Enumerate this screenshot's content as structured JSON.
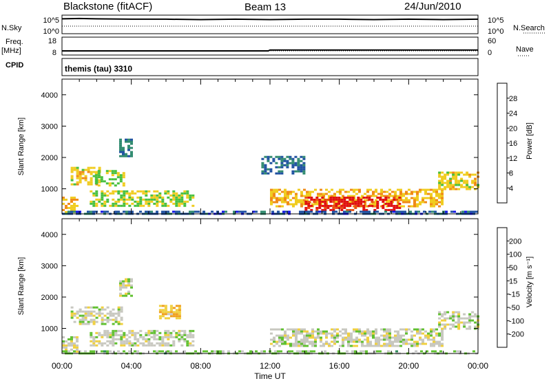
{
  "header": {
    "station": "Blackstone (fitACF)",
    "beam": "Beam 13",
    "date": "24/Jun/2010"
  },
  "side_labels": {
    "nsky": "N.Sky",
    "freq_line1": "Freq.",
    "freq_line2": "[MHz]",
    "cpid": "CPID",
    "nsearch": "N.Search",
    "nave": "Nave",
    "nsky_ticks": [
      "10^5",
      "10^0"
    ],
    "nsearch_ticks": [
      "10^5",
      "10^0"
    ],
    "freq_ticks": [
      "18",
      "8"
    ],
    "nave_ticks": [
      "60",
      "0"
    ]
  },
  "cpid_text": "themis (tau) 3310",
  "x_axis": {
    "label": "Time UT",
    "ticks": [
      "00:00",
      "04:00",
      "08:00",
      "12:00",
      "16:00",
      "20:00",
      "00:00"
    ]
  },
  "colors": {
    "power_scale": [
      "#1414e6",
      "#1e50a0",
      "#2f8a6e",
      "#48c040",
      "#f0cc20",
      "#f08a18",
      "#e85010",
      "#e01010"
    ],
    "velocity_scale": [
      "#e01010",
      "#f05a10",
      "#f0a020",
      "#f0d040",
      "#c8c8c8",
      "#60c030",
      "#2f8a5a",
      "#2050a0",
      "#1414d0"
    ],
    "ground_scatter": "#c8c8c0"
  },
  "chart_data": [
    {
      "type": "line",
      "title": "N.Sky / N.Search",
      "x_range_hours": [
        0,
        24
      ],
      "series": [
        {
          "name": "N.Sky",
          "x": [
            0,
            1,
            2,
            4,
            6,
            8,
            10,
            12,
            14,
            16,
            18,
            20,
            22,
            24
          ],
          "y": [
            4.0,
            4.1,
            4.0,
            3.9,
            3.9,
            3.8,
            3.9,
            3.8,
            3.9,
            3.9,
            3.8,
            3.9,
            3.8,
            3.9
          ]
        }
      ],
      "ylim": [
        0,
        5
      ]
    },
    {
      "type": "line",
      "title": "Freq. / Nave",
      "x_range_hours": [
        0,
        24
      ],
      "series": [
        {
          "name": "Freq.",
          "x": [
            0,
            11.9,
            12,
            24
          ],
          "y": [
            10.3,
            10.3,
            10.8,
            10.8
          ]
        }
      ],
      "ylim": [
        8,
        18
      ]
    },
    {
      "type": "heatmap",
      "title": "Power [dB]",
      "ylabel": "Slant Range [km]",
      "xlabel": "Time UT",
      "x_range_hours": [
        0,
        24
      ],
      "ylim": [
        200,
        4500
      ],
      "yticks": [
        1000,
        2000,
        3000,
        4000
      ],
      "colorbar": {
        "label": "Power [dB]",
        "ticks": [
          "4",
          "8",
          "12",
          "16",
          "20",
          "24",
          "28"
        ],
        "range": [
          0,
          30
        ]
      },
      "regions": [
        {
          "t0": 0.0,
          "t1": 0.8,
          "r0": 250,
          "r1": 750,
          "value": 18
        },
        {
          "t0": 0.5,
          "t1": 2.2,
          "r0": 1150,
          "r1": 1700,
          "value": 17
        },
        {
          "t0": 1.9,
          "t1": 3.5,
          "r0": 1100,
          "r1": 1600,
          "value": 14
        },
        {
          "t0": 1.6,
          "t1": 7.5,
          "r0": 450,
          "r1": 950,
          "value": 15
        },
        {
          "t0": 3.3,
          "t1": 4.0,
          "r0": 2050,
          "r1": 2600,
          "value": 9
        },
        {
          "t0": 11.5,
          "t1": 14.0,
          "r0": 1500,
          "r1": 2050,
          "value": 7
        },
        {
          "t0": 12.0,
          "t1": 22.0,
          "r0": 450,
          "r1": 1000,
          "value": 18
        },
        {
          "t0": 14.0,
          "t1": 19.5,
          "r0": 300,
          "r1": 750,
          "value": 28
        },
        {
          "t0": 21.7,
          "t1": 24.0,
          "r0": 1000,
          "r1": 1550,
          "value": 17
        },
        {
          "t0": 0.0,
          "t1": 24.0,
          "r0": 200,
          "r1": 300,
          "value": 6
        }
      ]
    },
    {
      "type": "heatmap",
      "title": "Velocity [m s^-1]",
      "ylabel": "Slant Range [km]",
      "xlabel": "Time UT",
      "x_range_hours": [
        0,
        24
      ],
      "ylim": [
        200,
        4500
      ],
      "yticks": [
        1000,
        2000,
        3000,
        4000
      ],
      "colorbar": {
        "label": "Velocity [m s^-1]",
        "ticks": [
          "200",
          "100",
          "50",
          "15",
          "-15",
          "-50",
          "-100",
          "-200"
        ],
        "range": [
          -250,
          250
        ]
      },
      "regions": [
        {
          "t0": 0.0,
          "t1": 0.8,
          "r0": 250,
          "r1": 750,
          "value": 0
        },
        {
          "t0": 0.5,
          "t1": 3.5,
          "r0": 1150,
          "r1": 1700,
          "value": 0
        },
        {
          "t0": 1.6,
          "t1": 7.5,
          "r0": 450,
          "r1": 950,
          "value": 0
        },
        {
          "t0": 5.6,
          "t1": 6.8,
          "r0": 1300,
          "r1": 1750,
          "value": -70
        },
        {
          "t0": 3.3,
          "t1": 4.0,
          "r0": 2050,
          "r1": 2600,
          "value": 0
        },
        {
          "t0": 12.0,
          "t1": 22.0,
          "r0": 450,
          "r1": 1000,
          "value": 0
        },
        {
          "t0": 21.7,
          "t1": 24.0,
          "r0": 1000,
          "r1": 1550,
          "value": 0
        },
        {
          "t0": 0.0,
          "t1": 24.0,
          "r0": 200,
          "r1": 300,
          "value": 40
        }
      ]
    }
  ]
}
